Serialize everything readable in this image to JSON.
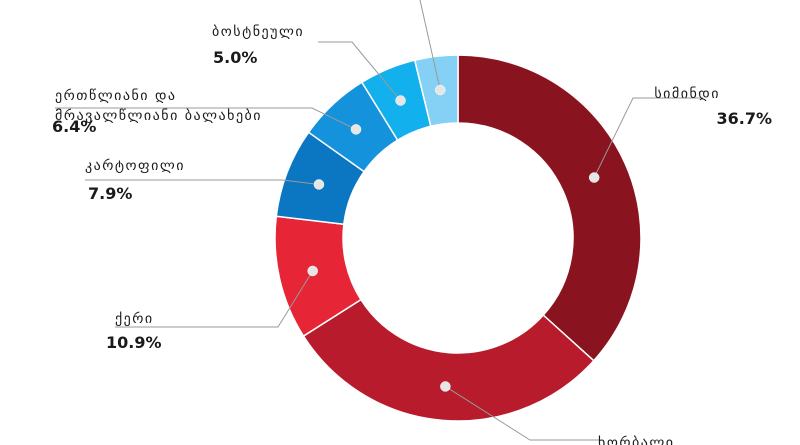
{
  "chart_data": {
    "type": "pie",
    "donut": true,
    "slices": [
      {
        "label": "სიმინდი",
        "value_text": "36.7%",
        "value": 36.7,
        "color": "#8a1320"
      },
      {
        "label": "ხორბალი",
        "value_text": "",
        "value": 29.3,
        "color": "#b81b2b"
      },
      {
        "label": "ქერი",
        "value_text": "10.9%",
        "value": 10.9,
        "color": "#e62536"
      },
      {
        "label": "კარტოფილი",
        "value_text": "7.9%",
        "value": 7.9,
        "color": "#0b76c2"
      },
      {
        "label": "ერთწლიანი და მრავალწლიანი ბალახები",
        "value_text": "6.4%",
        "value": 6.4,
        "color": "#1592dc"
      },
      {
        "label": "ბოსტნეული",
        "value_text": "5.0%",
        "value": 5.0,
        "color": "#12b0ec"
      },
      {
        "label": "",
        "value_text": "",
        "value": 3.8,
        "color": "#85d1f6"
      }
    ]
  }
}
